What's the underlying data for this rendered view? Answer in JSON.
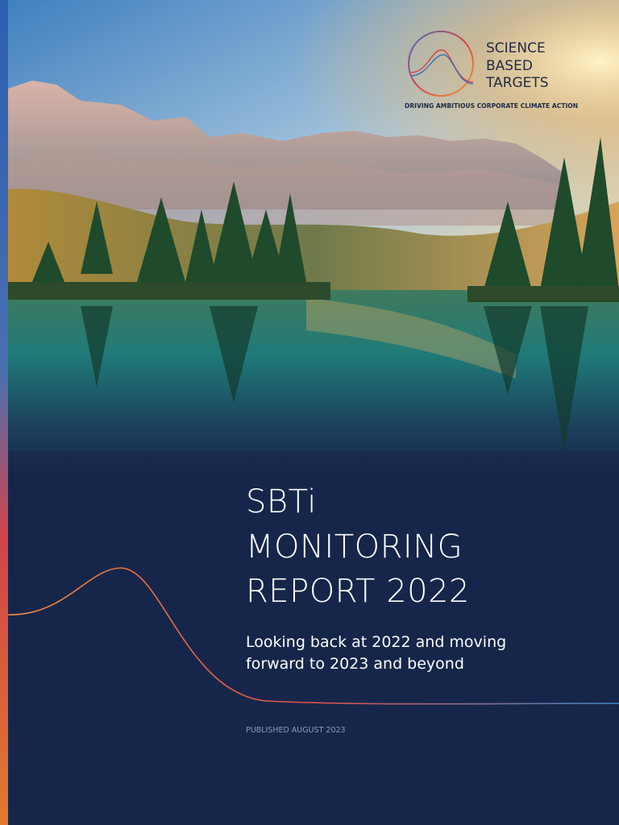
{
  "logo": {
    "lines": [
      "SCIENCE",
      "BASED",
      "TARGETS"
    ],
    "tagline": "DRIVING AMBITIOUS CORPORATE CLIMATE ACTION"
  },
  "title": {
    "lines": [
      "SBTi",
      "MONITORING",
      "REPORT 2022"
    ]
  },
  "subtitle": {
    "lines": [
      "Looking back at 2022 and moving",
      "forward to 2023 and beyond"
    ]
  },
  "published": "PUBLISHED AUGUST 2023"
}
